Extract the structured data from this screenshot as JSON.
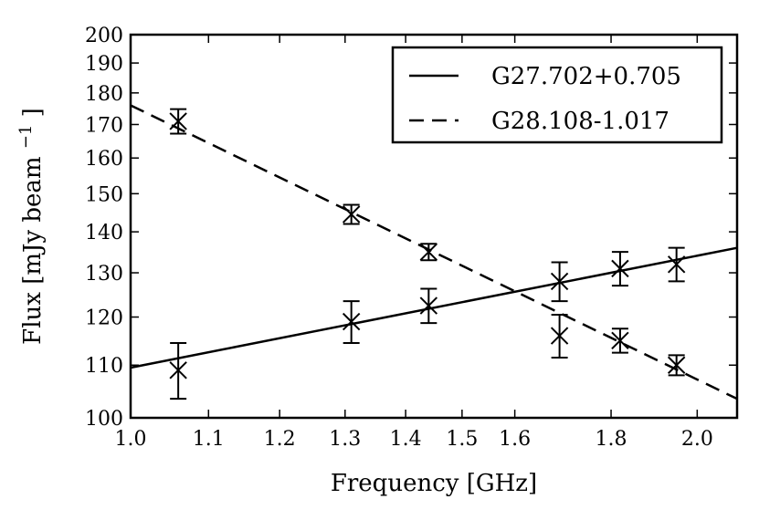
{
  "chart_data": {
    "type": "scatter",
    "title": "",
    "xlabel": "Frequency [GHz]",
    "ylabel": "Flux [mJy beam",
    "ylabel_superscript": "−1",
    "ylabel_close": "]",
    "x_scale": "log",
    "y_scale": "log",
    "xlim": [
      1.0,
      2.1
    ],
    "ylim": [
      100,
      200
    ],
    "x_ticks": [
      1.0,
      1.1,
      1.2,
      1.3,
      1.4,
      1.5,
      1.6,
      1.8,
      2.0
    ],
    "x_tick_labels": [
      "1.0",
      "1.1",
      "1.2",
      "1.3",
      "1.4",
      "1.5",
      "1.6",
      "1.8",
      "2.0"
    ],
    "y_ticks": [
      100,
      110,
      120,
      130,
      140,
      150,
      160,
      170,
      180,
      190,
      200
    ],
    "y_tick_labels": [
      "100",
      "110",
      "120",
      "130",
      "140",
      "150",
      "160",
      "170",
      "180",
      "190",
      "200"
    ],
    "grid": false,
    "legend_position": "top-right",
    "series": [
      {
        "name": "G27.702+0.705",
        "line_style": "solid",
        "marker": "x",
        "points": [
          {
            "x": 1.06,
            "y": 109.0,
            "err": 5.5
          },
          {
            "x": 1.31,
            "y": 119.0,
            "err": 4.5
          },
          {
            "x": 1.44,
            "y": 122.5,
            "err": 3.8
          },
          {
            "x": 1.69,
            "y": 128.0,
            "err": 4.5
          },
          {
            "x": 1.82,
            "y": 131.0,
            "err": 4.0
          },
          {
            "x": 1.95,
            "y": 132.0,
            "err": 4.0
          }
        ],
        "fit": {
          "x": [
            1.0,
            2.1
          ],
          "y": [
            109.5,
            136.0
          ]
        }
      },
      {
        "name": "G28.108-1.017",
        "line_style": "dashed",
        "marker": "x",
        "points": [
          {
            "x": 1.06,
            "y": 171.0,
            "err": 3.8
          },
          {
            "x": 1.31,
            "y": 144.5,
            "err": 2.5
          },
          {
            "x": 1.44,
            "y": 135.0,
            "err": 2.0
          },
          {
            "x": 1.69,
            "y": 116.0,
            "err": 4.5
          },
          {
            "x": 1.82,
            "y": 115.0,
            "err": 2.5
          },
          {
            "x": 1.95,
            "y": 110.0,
            "err": 2.0
          }
        ],
        "fit": {
          "x": [
            1.0,
            2.1
          ],
          "y": [
            176.0,
            103.5
          ]
        }
      }
    ],
    "colors": {
      "line": "#000000",
      "background": "#ffffff"
    }
  }
}
